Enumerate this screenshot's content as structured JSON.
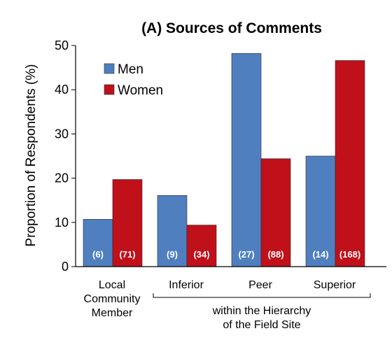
{
  "chart_data": {
    "type": "bar",
    "title": "(A) Sources of Comments",
    "ylabel": "Proportion of Respondents (%)",
    "xlabel": "",
    "ylim": [
      0,
      50
    ],
    "yticks": [
      0,
      10,
      20,
      30,
      40,
      50
    ],
    "grid": false,
    "legend_position": "top-left",
    "categories": [
      [
        "Local",
        "Community",
        "Member"
      ],
      [
        "Inferior"
      ],
      [
        "Peer"
      ],
      [
        "Superior"
      ]
    ],
    "group_label": [
      "within the Hierarchy",
      "of the Field Site"
    ],
    "series": [
      {
        "name": "Men",
        "color": "#4f7fbf",
        "values": [
          10.7,
          16.1,
          48.2,
          25.0
        ],
        "counts": [
          "(6)",
          "(9)",
          "(27)",
          "(14)"
        ]
      },
      {
        "name": "Women",
        "color": "#c0101a",
        "values": [
          19.7,
          9.4,
          24.4,
          46.6
        ],
        "counts": [
          "(71)",
          "(34)",
          "(88)",
          "(168)"
        ]
      }
    ]
  }
}
